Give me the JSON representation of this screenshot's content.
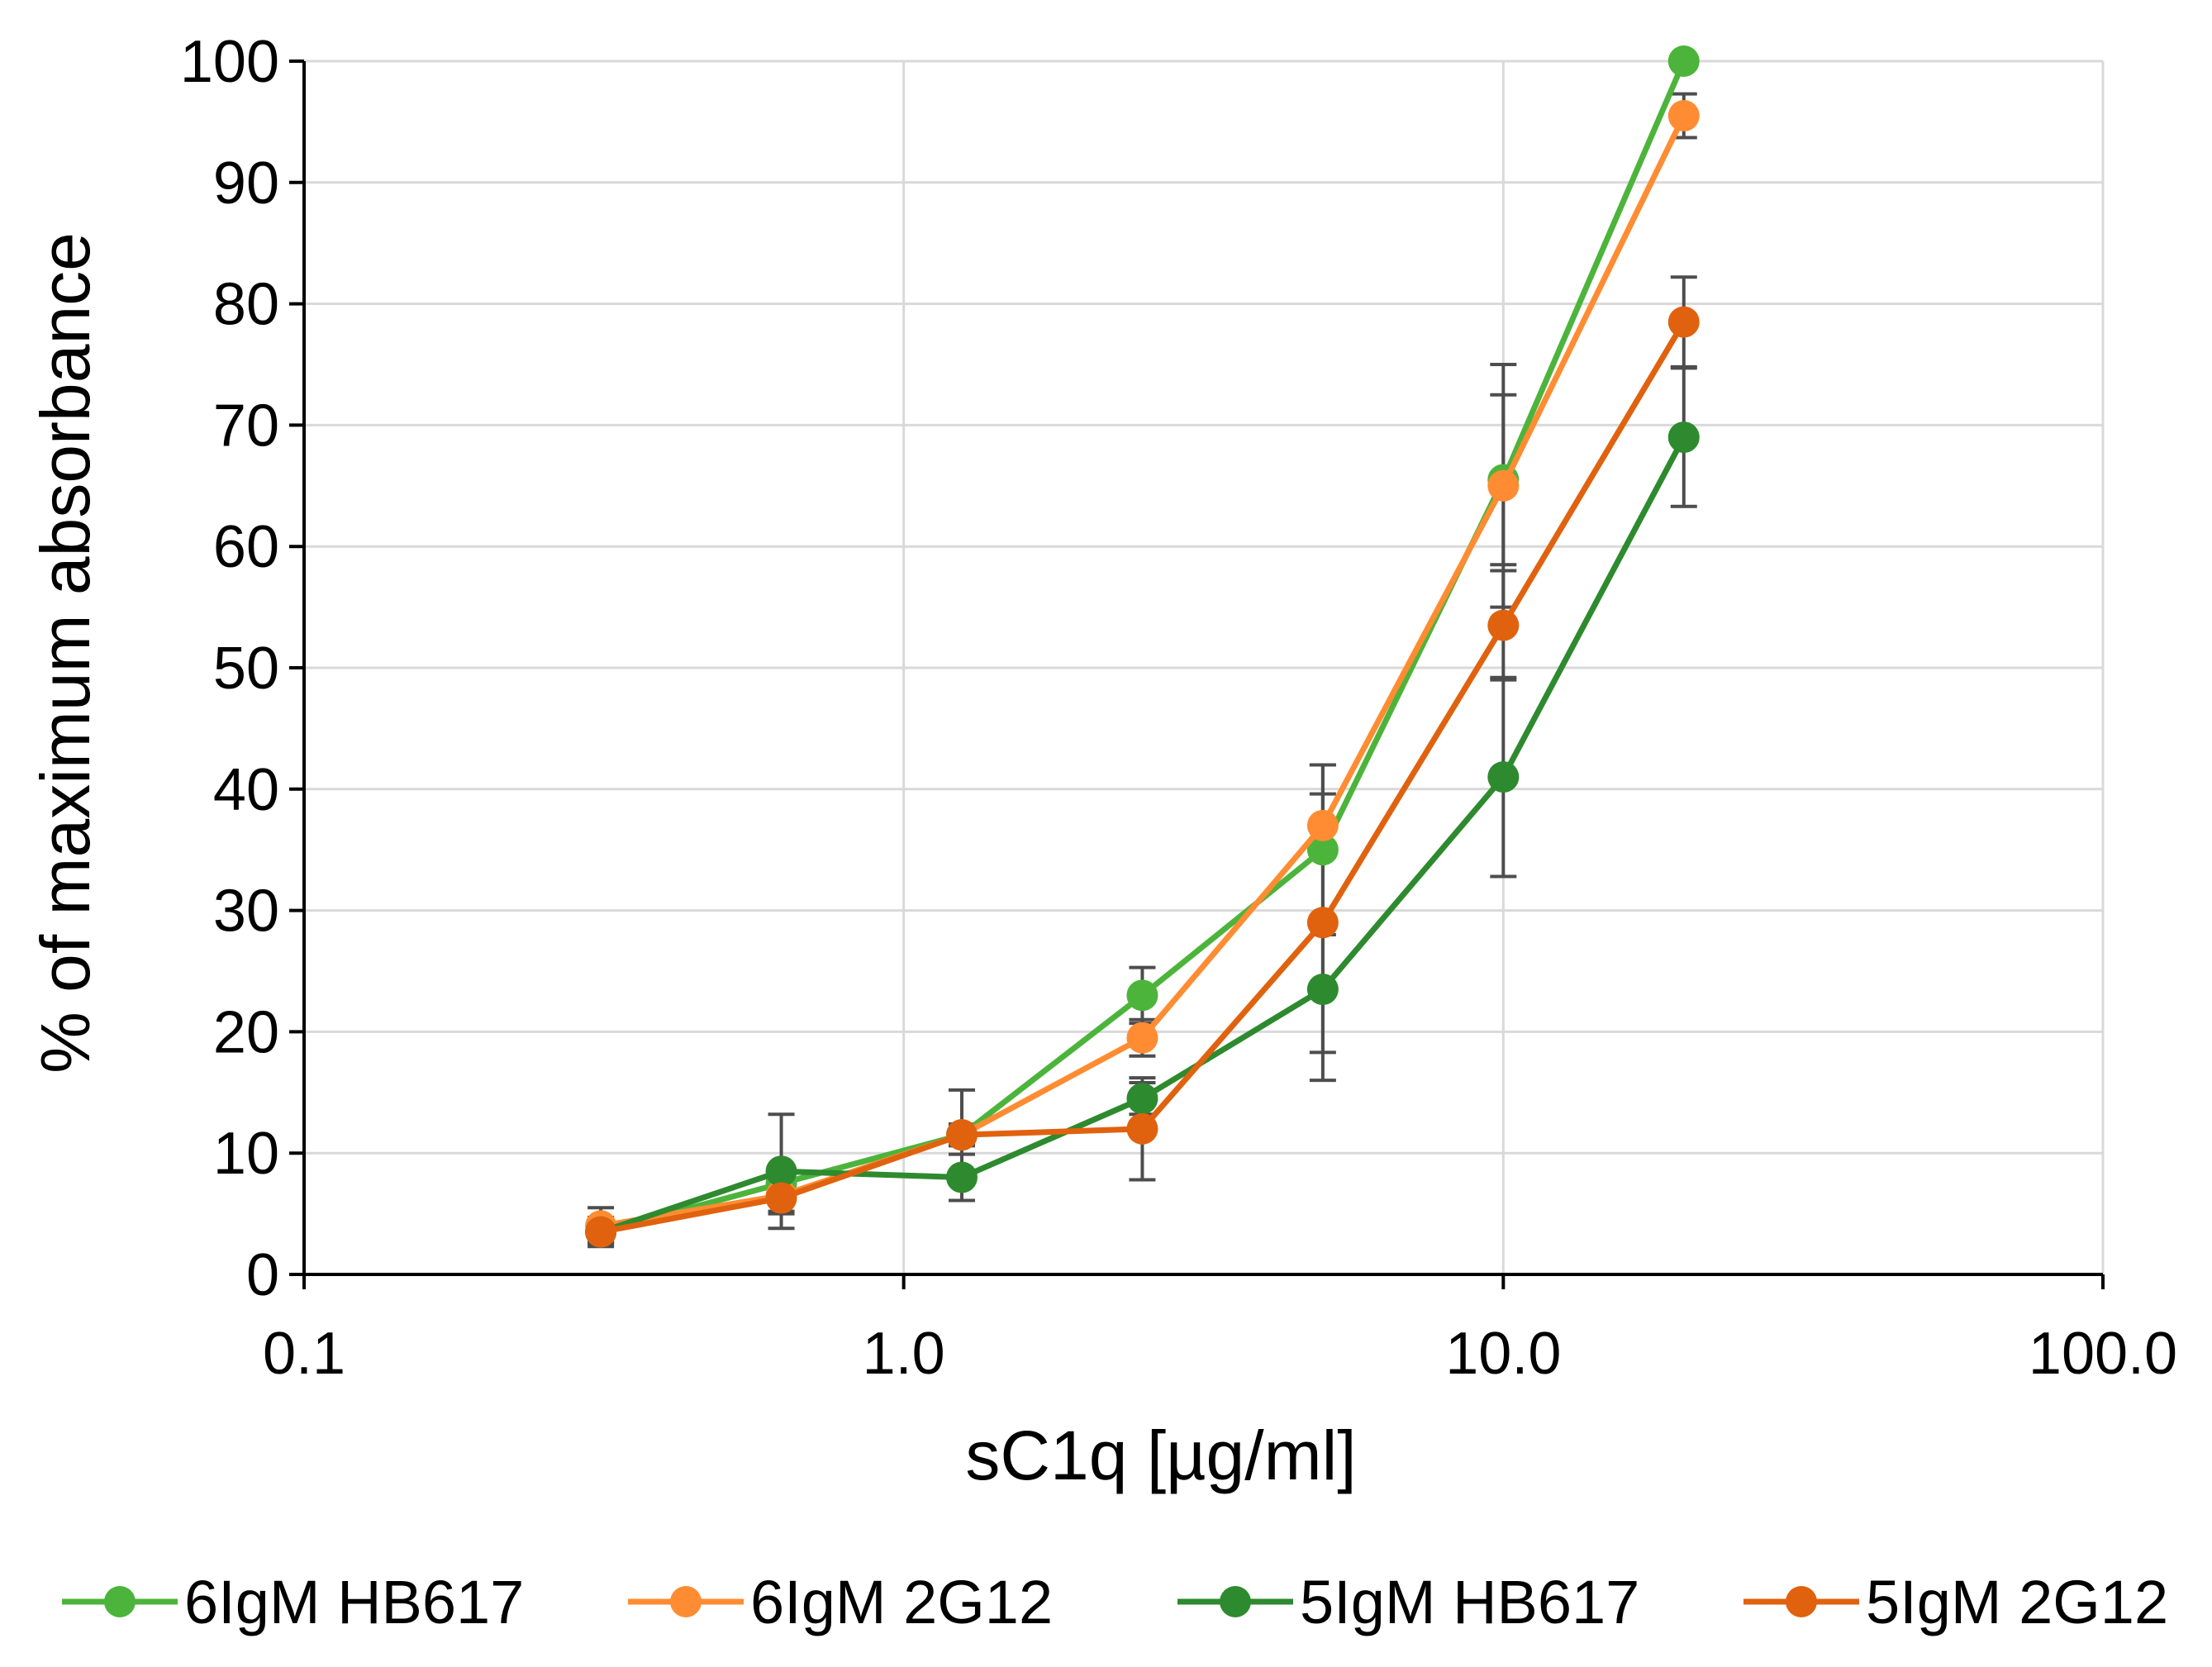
{
  "chart_data": {
    "type": "line",
    "title": "",
    "xlabel": "sC1q [µg/ml]",
    "ylabel": "% of maximum absorbance",
    "xscale": "log",
    "xlim": [
      0.1,
      100
    ],
    "ylim": [
      0,
      100
    ],
    "xticks": [
      0.1,
      1,
      10,
      100
    ],
    "xtick_labels": [
      "0.1",
      "1.0",
      "10.0",
      "100.0"
    ],
    "yticks": [
      0,
      10,
      20,
      30,
      40,
      50,
      60,
      70,
      80,
      90,
      100
    ],
    "ytick_labels": [
      "0",
      "10",
      "20",
      "30",
      "40",
      "50",
      "60",
      "70",
      "80",
      "90",
      "100"
    ],
    "grid": true,
    "legend_position": "bottom",
    "x": [
      0.3125,
      0.625,
      1.25,
      2.5,
      5,
      10,
      20
    ],
    "series": [
      {
        "name": "6IgM HB617",
        "color": "#4cb43b",
        "values": [
          3.5,
          7.5,
          11.5,
          23,
          35,
          65.5,
          100
        ],
        "errors": [
          0.8,
          0.8,
          0.8,
          2.3,
          7,
          7,
          0
        ]
      },
      {
        "name": "6IgM 2G12",
        "color": "#ff8c32",
        "values": [
          4,
          6.5,
          11.5,
          19.5,
          37,
          65,
          95.5
        ],
        "errors": [
          1.5,
          1.3,
          0.9,
          1.5,
          2.6,
          10,
          1.8
        ]
      },
      {
        "name": "5IgM HB617",
        "color": "#2e8a2e",
        "values": [
          3.5,
          8.5,
          8,
          14.5,
          23.5,
          41,
          69
        ],
        "errors": [
          1.2,
          4.7,
          1.9,
          1.3,
          5.2,
          8.2,
          5.7
        ]
      },
      {
        "name": "5IgM 2G12",
        "color": "#e0620f",
        "values": [
          3.5,
          6.3,
          11.5,
          12,
          29,
          53.5,
          78.5
        ],
        "errors": [
          0.9,
          1.3,
          3.7,
          4.2,
          13,
          4.5,
          3.7
        ]
      }
    ]
  }
}
